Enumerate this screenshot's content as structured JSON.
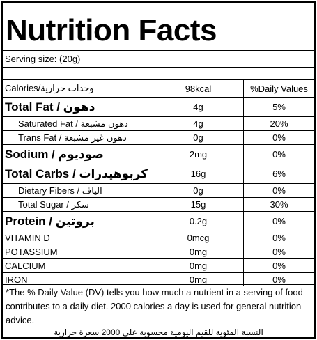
{
  "title": "Nutrition Facts",
  "serving": "Serving size:  (20g)",
  "header": {
    "label": "Calories/وحدات حرارية",
    "amount": "98kcal",
    "dv": "%Daily Values"
  },
  "rows": [
    {
      "label": "Total Fat / دهون",
      "amount": "4g",
      "dv": "5%",
      "style": "big"
    },
    {
      "label": "Saturated Fat / دهون مشبعة",
      "amount": "4g",
      "dv": "20%",
      "style": "sub"
    },
    {
      "label": "Trans Fat / دهون غير مشبعة",
      "amount": "0g",
      "dv": "0%",
      "style": "sub"
    },
    {
      "label": "Sodium / صوديوم",
      "amount": "2mg",
      "dv": "0%",
      "style": "big"
    },
    {
      "label": "Total Carbs / كربوهيدرات",
      "amount": "16g",
      "dv": "6%",
      "style": "big"
    },
    {
      "label": "Dietary Fibers / الياف",
      "amount": "0g",
      "dv": "0%",
      "style": "sub"
    },
    {
      "label": "Total Sugar / سكر",
      "amount": "15g",
      "dv": "30%",
      "style": "sub"
    },
    {
      "label": "Protein / بروتين",
      "amount": "0.2g",
      "dv": "0%",
      "style": "big"
    },
    {
      "label": "VITAMIN D",
      "amount": "0mcg",
      "dv": "0%",
      "style": "plain"
    },
    {
      "label": "POTASSIUM",
      "amount": "0mg",
      "dv": "0%",
      "style": "plain"
    },
    {
      "label": "CALCIUM",
      "amount": "0mg",
      "dv": "0%",
      "style": "plain"
    },
    {
      "label": "IRON",
      "amount": "0mg",
      "dv": "0%",
      "style": "plain"
    }
  ],
  "footnote": "*The % Daily Value (DV) tells you how much a nutrient in a serving of food contributes to a daily diet. 2000 calories a day is used for general nutrition advice.",
  "footnote_arabic": "النسبة المئوية للقيم اليومية محسوبة على 2000 سعرة حرارية"
}
